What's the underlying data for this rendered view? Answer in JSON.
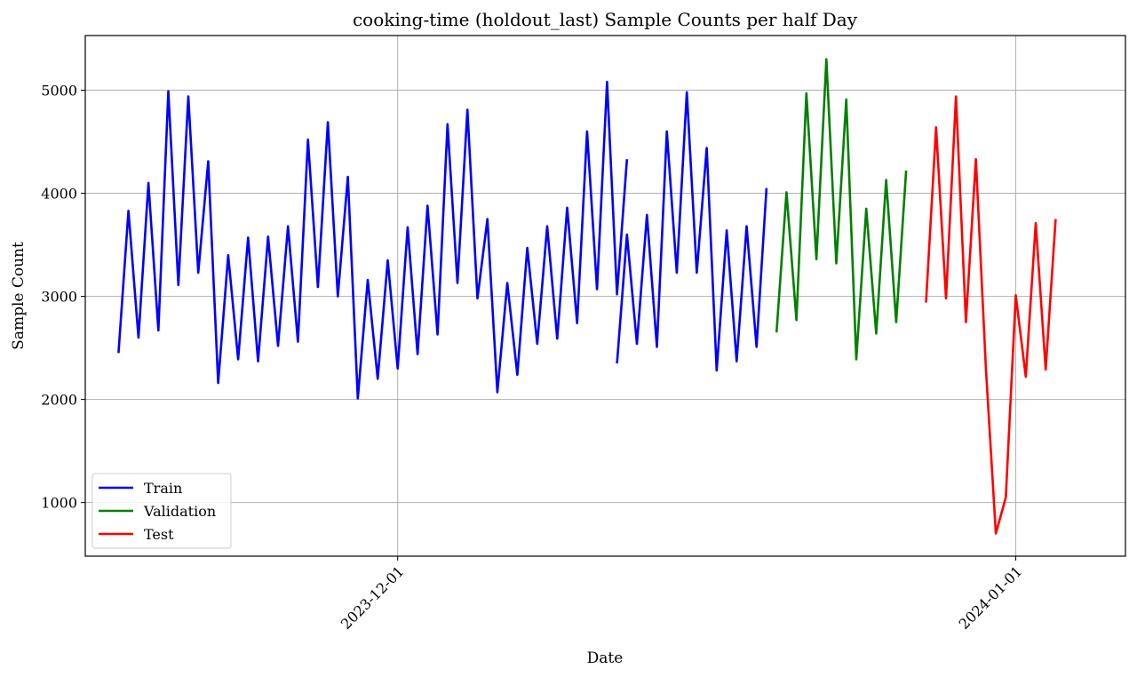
{
  "chart_data": {
    "type": "line",
    "title": "cooking-time (holdout_last) Sample Counts per half Day",
    "xlabel": "Date",
    "ylabel": "Sample Count",
    "x_axis": {
      "type": "date",
      "range": [
        "2023-11-15T08:00",
        "2024-01-06T12:00"
      ],
      "ticks": [
        {
          "label": "2023-12-01",
          "date": "2023-12-01"
        },
        {
          "label": "2024-01-01",
          "date": "2024-01-01"
        }
      ],
      "tick_label_rotation": 45
    },
    "y_axis": {
      "range": [
        480,
        5530
      ],
      "ticks": [
        1000,
        2000,
        3000,
        4000,
        5000
      ]
    },
    "grid": true,
    "legend": {
      "placement": "lower-left"
    },
    "series": [
      {
        "name": "Train",
        "color": "#0000ff",
        "segments": [
          {
            "start": "2023-11-17T00:00",
            "step_hours": 12,
            "values": [
              2450,
              3830,
              2600,
              4100,
              2670,
              4990,
              3110,
              4940,
              3230,
              4310,
              2160,
              3400,
              2390,
              3570,
              2370,
              3580,
              2520,
              3680,
              2560,
              4520,
              3090,
              4690,
              3000,
              4160,
              2010,
              3160,
              2200,
              3350,
              2300,
              3670,
              2440,
              3880,
              2630,
              4670,
              3130,
              4810,
              2980,
              3750,
              2070,
              3130,
              2240,
              3470,
              2540,
              3680,
              2590,
              3860,
              2740,
              4600,
              3070,
              5080,
              3020,
              4330
            ]
          },
          {
            "start": "2023-12-12T00:00",
            "step_hours": 12,
            "values": [
              2350,
              3600,
              2540,
              3790,
              2510,
              4600,
              3230,
              4980,
              3230,
              4440,
              2280,
              3640,
              2370,
              3680,
              2510,
              4050
            ]
          }
        ]
      },
      {
        "name": "Validation",
        "color": "#008000",
        "segments": [
          {
            "start": "2023-12-20T00:00",
            "step_hours": 12,
            "values": [
              2650,
              4010,
              2770,
              4970,
              3360,
              5300,
              3320,
              4910,
              2390,
              3850,
              2640,
              4130,
              2750,
              4220
            ]
          }
        ]
      },
      {
        "name": "Test",
        "color": "#ff0000",
        "segments": [
          {
            "start": "2023-12-27T12:00",
            "step_hours": 12,
            "values": [
              2940,
              4640,
              2980,
              4940,
              2750,
              4330,
              2300,
              700,
              1050,
              3010,
              2220,
              3710,
              2290,
              3750
            ]
          }
        ]
      }
    ]
  }
}
